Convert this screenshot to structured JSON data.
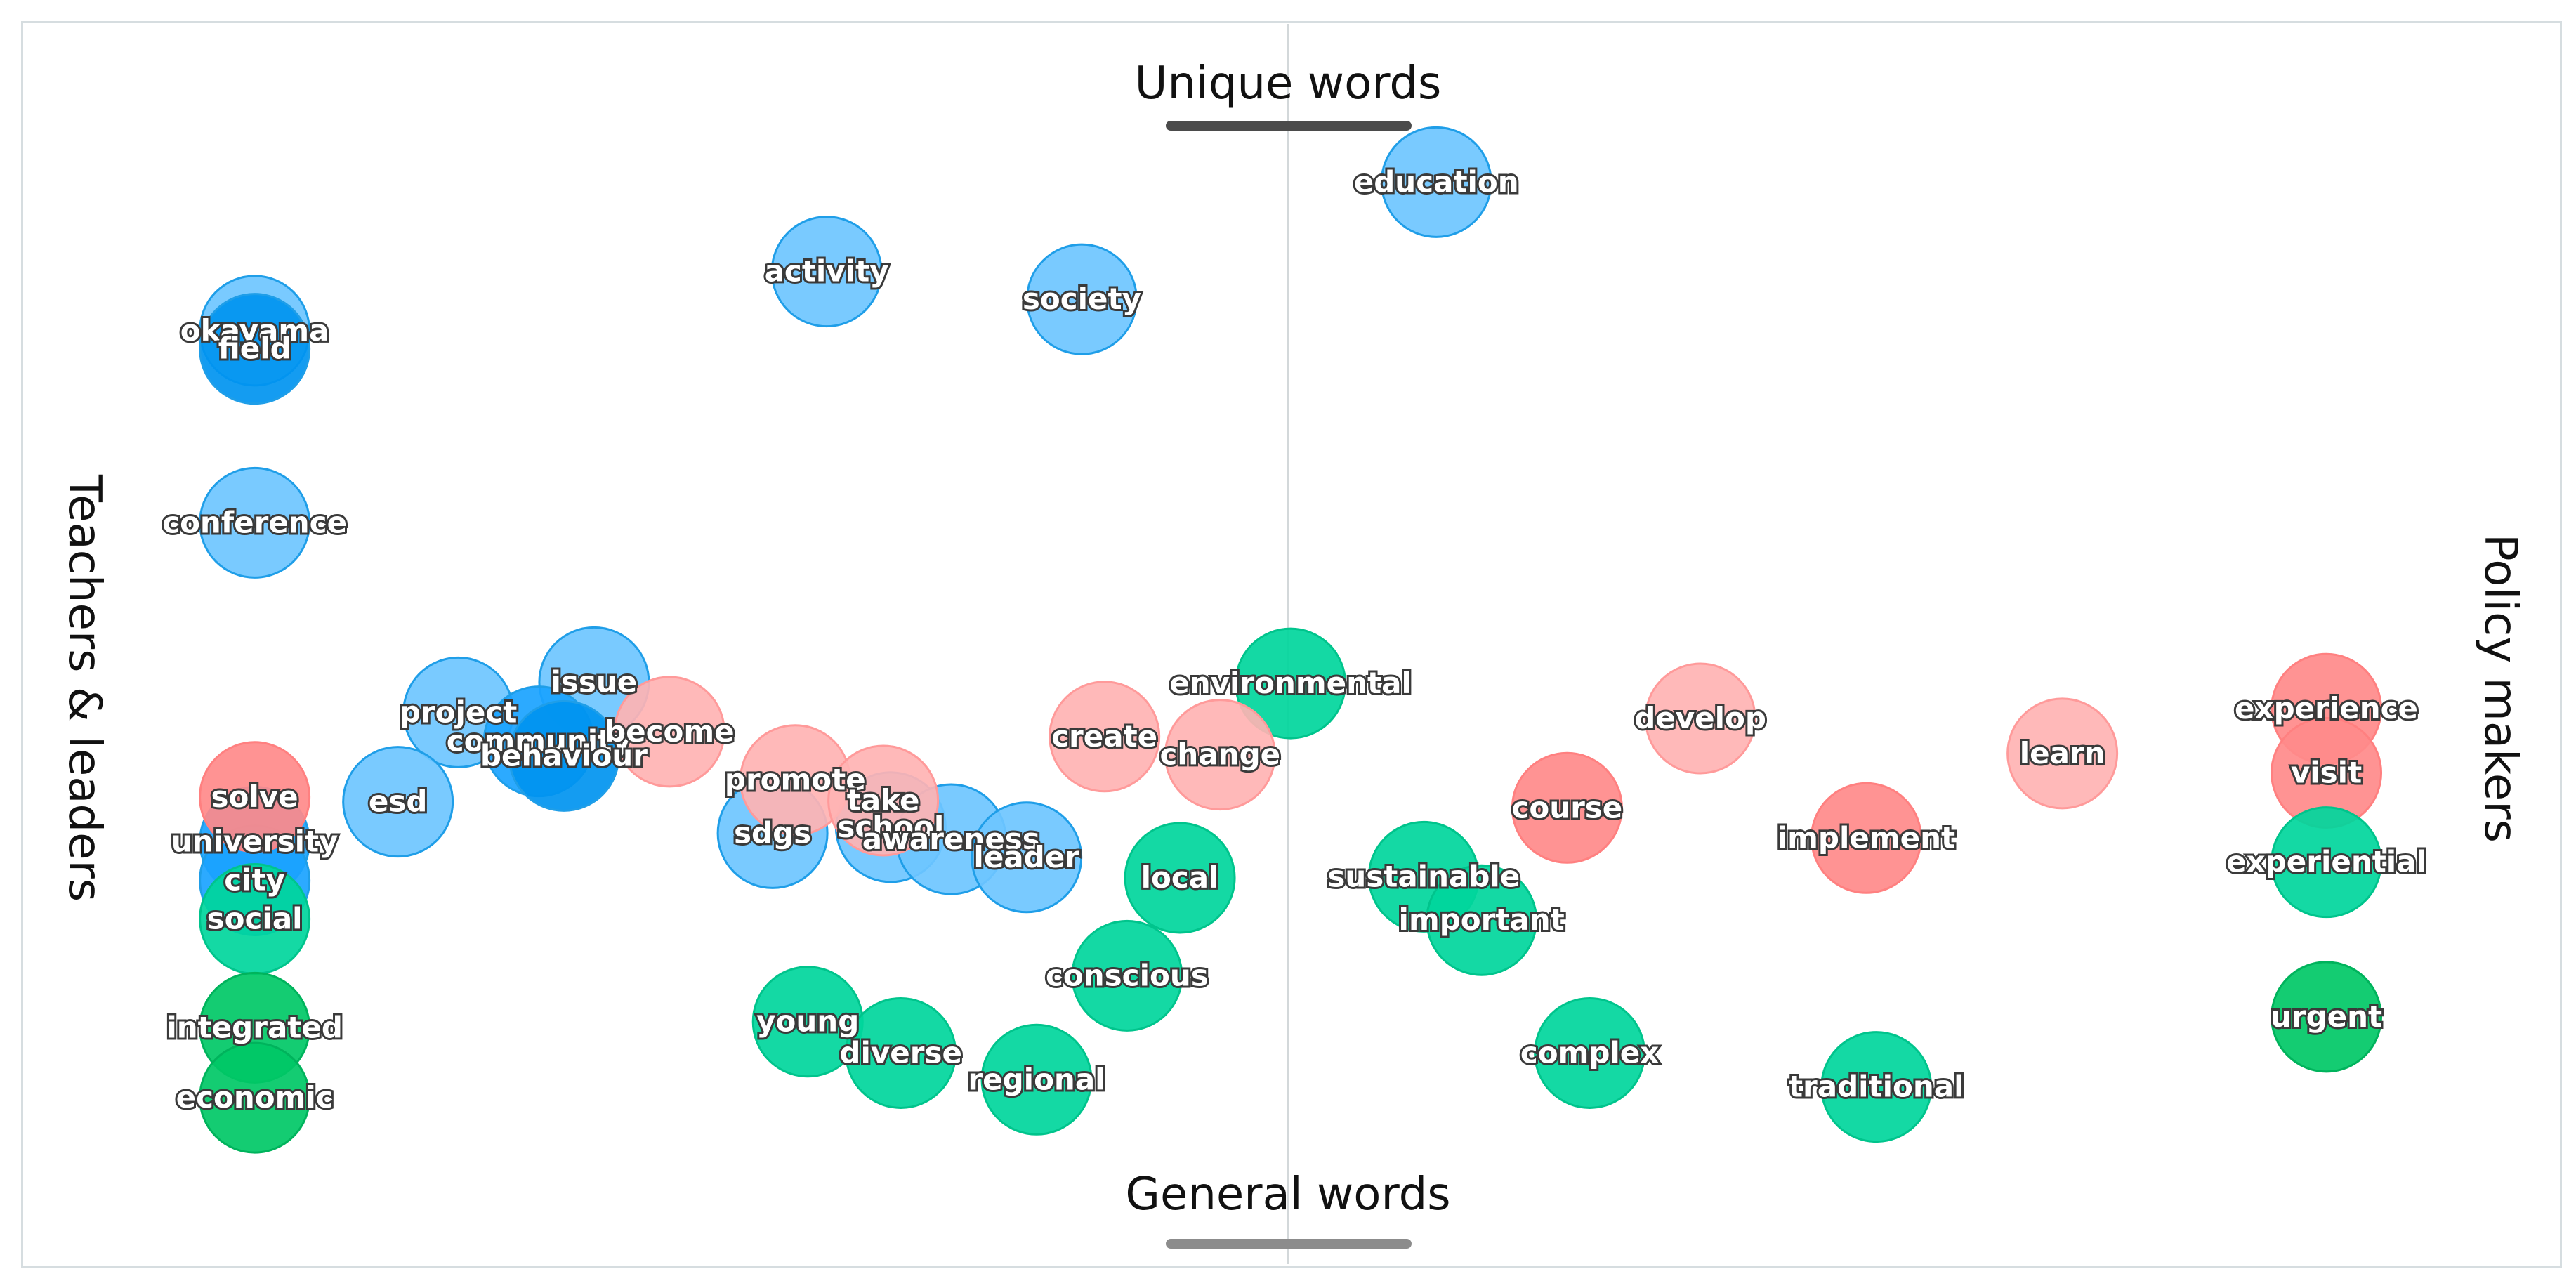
{
  "chart_data": {
    "type": "scatter",
    "axes": {
      "top": "Unique words",
      "bottom": "General words",
      "left": "Teachers & leaders",
      "right": "Policy makers"
    },
    "xlim": [
      -1,
      1
    ],
    "ylim": [
      -1,
      1
    ],
    "grid": "center-vertical-line",
    "colors": {
      "blue_light": "#6ec6ff",
      "blue": "#1aa3ff",
      "blue_dark": "#0094f0",
      "pink": "#ffb3b3",
      "red": "#ff8a8a",
      "green": "#00d69c",
      "green_dark": "#00c866"
    },
    "points": [
      {
        "word": "education",
        "x": 0.118,
        "y": 0.838,
        "color": "blue_light"
      },
      {
        "word": "activity",
        "x": -0.367,
        "y": 0.69,
        "color": "blue_light"
      },
      {
        "word": "society",
        "x": -0.164,
        "y": 0.644,
        "color": "blue_light"
      },
      {
        "word": "okayama",
        "x": -0.822,
        "y": 0.592,
        "color": "blue_light"
      },
      {
        "word": "field",
        "x": -0.822,
        "y": 0.562,
        "color": "blue_dark"
      },
      {
        "word": "conference",
        "x": -0.822,
        "y": 0.274,
        "color": "blue_light"
      },
      {
        "word": "issue",
        "x": -0.552,
        "y": 0.01,
        "color": "blue_light"
      },
      {
        "word": "project",
        "x": -0.66,
        "y": -0.04,
        "color": "blue_light"
      },
      {
        "word": "community",
        "x": -0.596,
        "y": -0.088,
        "color": "blue"
      },
      {
        "word": "behaviour",
        "x": -0.576,
        "y": -0.112,
        "color": "blue_dark"
      },
      {
        "word": "esd",
        "x": -0.708,
        "y": -0.188,
        "color": "blue_light"
      },
      {
        "word": "sdgs",
        "x": -0.41,
        "y": -0.24,
        "color": "blue_light"
      },
      {
        "word": "school",
        "x": -0.316,
        "y": -0.23,
        "color": "blue_light"
      },
      {
        "word": "awareness",
        "x": -0.268,
        "y": -0.25,
        "color": "blue_light"
      },
      {
        "word": "leader",
        "x": -0.208,
        "y": -0.28,
        "color": "blue_light"
      },
      {
        "word": "university",
        "x": -0.822,
        "y": -0.254,
        "color": "blue"
      },
      {
        "word": "city",
        "x": -0.822,
        "y": -0.318,
        "color": "blue"
      },
      {
        "word": "environmental",
        "x": 0.002,
        "y": 0.008,
        "color": "green"
      },
      {
        "word": "become",
        "x": -0.492,
        "y": -0.072,
        "color": "pink"
      },
      {
        "word": "promote",
        "x": -0.392,
        "y": -0.152,
        "color": "pink"
      },
      {
        "word": "take",
        "x": -0.322,
        "y": -0.186,
        "color": "pink"
      },
      {
        "word": "create",
        "x": -0.146,
        "y": -0.08,
        "color": "pink"
      },
      {
        "word": "change",
        "x": -0.054,
        "y": -0.11,
        "color": "pink"
      },
      {
        "word": "develop",
        "x": 0.328,
        "y": -0.05,
        "color": "pink"
      },
      {
        "word": "learn",
        "x": 0.616,
        "y": -0.108,
        "color": "pink"
      },
      {
        "word": "solve",
        "x": -0.822,
        "y": -0.18,
        "color": "red"
      },
      {
        "word": "course",
        "x": 0.222,
        "y": -0.198,
        "color": "red"
      },
      {
        "word": "implement",
        "x": 0.46,
        "y": -0.248,
        "color": "red"
      },
      {
        "word": "experience",
        "x": 0.826,
        "y": -0.034,
        "color": "red"
      },
      {
        "word": "visit",
        "x": 0.826,
        "y": -0.14,
        "color": "red"
      },
      {
        "word": "local",
        "x": -0.086,
        "y": -0.314,
        "color": "green"
      },
      {
        "word": "sustainable",
        "x": 0.108,
        "y": -0.312,
        "color": "green"
      },
      {
        "word": "important",
        "x": 0.154,
        "y": -0.384,
        "color": "green"
      },
      {
        "word": "conscious",
        "x": -0.128,
        "y": -0.476,
        "color": "green"
      },
      {
        "word": "young",
        "x": -0.382,
        "y": -0.552,
        "color": "green"
      },
      {
        "word": "diverse",
        "x": -0.308,
        "y": -0.604,
        "color": "green"
      },
      {
        "word": "regional",
        "x": -0.2,
        "y": -0.648,
        "color": "green"
      },
      {
        "word": "complex",
        "x": 0.24,
        "y": -0.604,
        "color": "green"
      },
      {
        "word": "traditional",
        "x": 0.468,
        "y": -0.66,
        "color": "green"
      },
      {
        "word": "experiential",
        "x": 0.826,
        "y": -0.288,
        "color": "green"
      },
      {
        "word": "urgent",
        "x": 0.826,
        "y": -0.544,
        "color": "green_dark"
      },
      {
        "word": "social",
        "x": -0.822,
        "y": -0.382,
        "color": "green"
      },
      {
        "word": "integrated",
        "x": -0.822,
        "y": -0.562,
        "color": "green_dark"
      },
      {
        "word": "economic",
        "x": -0.822,
        "y": -0.678,
        "color": "green_dark"
      }
    ]
  }
}
